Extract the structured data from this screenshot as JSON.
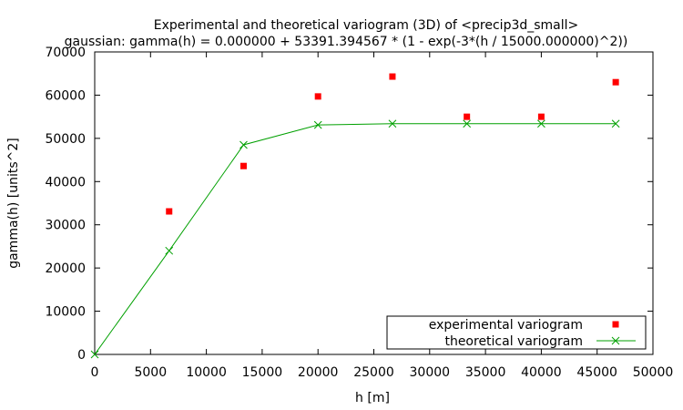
{
  "chart_data": {
    "type": "scatter",
    "title": "Experimental and theoretical variogram (3D) of <precip3d_small>",
    "subtitle": "gaussian: gamma(h) = 0.000000 + 53391.394567 * (1 - exp(-3*(h / 15000.000000)^2))",
    "xlabel": "h [m]",
    "ylabel": "gamma(h) [units^2]",
    "xlim": [
      0,
      50000
    ],
    "ylim": [
      0,
      70000
    ],
    "xticks": [
      0,
      5000,
      10000,
      15000,
      20000,
      25000,
      30000,
      35000,
      40000,
      45000,
      50000
    ],
    "yticks": [
      0,
      10000,
      20000,
      30000,
      40000,
      50000,
      60000,
      70000
    ],
    "grid": false,
    "legend_position": "bottom-right",
    "series": [
      {
        "name": "experimental variogram",
        "style": "points",
        "marker": "square",
        "color": "#ff0000",
        "x": [
          6667,
          13333,
          20000,
          26667,
          33333,
          40000,
          46667
        ],
        "y": [
          33100,
          43600,
          59700,
          64300,
          55000,
          55000,
          63000
        ]
      },
      {
        "name": "theoretical variogram",
        "style": "linespoints",
        "marker": "x",
        "color": "#00a000",
        "x": [
          0,
          6667,
          13333,
          20000,
          26667,
          33333,
          40000,
          46667
        ],
        "y": [
          0,
          24000,
          48500,
          53100,
          53390,
          53391,
          53391,
          53391
        ]
      }
    ]
  }
}
